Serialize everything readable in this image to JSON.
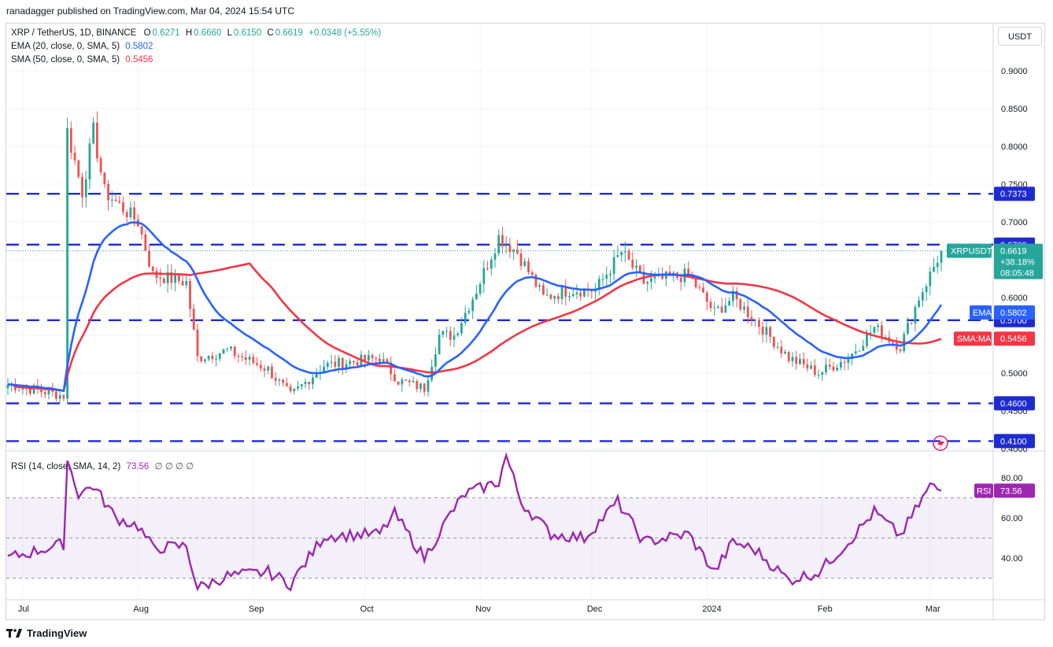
{
  "publisher_line": "ranadagger published on TradingView.com, Mar 04, 2024 15:54 UTC",
  "footer_brand": "TradingView",
  "currency_button": "USDT",
  "legend": {
    "symbol": "XRP / TetherUS, 1D, BINANCE",
    "o_label": "O",
    "o": "0.6271",
    "h_label": "H",
    "h": "0.6660",
    "l_label": "L",
    "l": "0.6150",
    "c_label": "C",
    "c": "0.6619",
    "change": "+0.0348 (+5.55%)",
    "ema_label": "EMA (20, close, 0, SMA, 5)",
    "ema_value": "0.5802",
    "sma_label": "SMA (50, close, 0, SMA, 5)",
    "sma_value": "0.5456",
    "rsi_label": "RSI (14, close, SMA, 14, 2)",
    "rsi_value": "73.56",
    "rsi_extra": "∅ ∅ ∅ ∅"
  },
  "colors": {
    "up": "#26a69a",
    "down": "#ef5350",
    "ema": "#2962ff",
    "sma": "#f23645",
    "rsi": "#9c27b0",
    "level": "#1e2bcf"
  },
  "chart_data": [
    {
      "type": "candlestick",
      "title": "XRP / TetherUS, 1D, BINANCE",
      "ylabel": "USDT",
      "yticks": [
        "0.9000",
        "0.8500",
        "0.8000",
        "0.7500",
        "0.7000",
        "0.6500",
        "0.6000",
        "0.5500",
        "0.5000",
        "0.4500",
        "0.4000"
      ],
      "ylim": [
        0.4,
        0.95
      ],
      "xticks": [
        "Jul",
        "Aug",
        "Sep",
        "Oct",
        "Nov",
        "Dec",
        "2024",
        "Feb",
        "Mar"
      ],
      "horizontal_levels": [
        {
          "value": 0.7373,
          "label": "0.7373"
        },
        {
          "value": 0.67,
          "label": "0.6700"
        },
        {
          "value": 0.57,
          "label": "0.5700"
        },
        {
          "value": 0.46,
          "label": "0.4600"
        },
        {
          "value": 0.41,
          "label": "0.4100"
        }
      ],
      "price_tag": {
        "label": "XRPUSDT",
        "value": "0.6619",
        "change": "+38.18%",
        "countdown": "08:05:48"
      },
      "ema_tag": {
        "label": "EMA",
        "value": "0.5802"
      },
      "sma_tag": {
        "label": "SMA:MA",
        "value": "0.5456"
      },
      "series": [
        {
          "name": "XRPUSDT",
          "type": "candlestick"
        },
        {
          "name": "EMA (20)",
          "type": "line"
        },
        {
          "name": "SMA (50)",
          "type": "line"
        }
      ],
      "anchors": [
        {
          "date": "2023-06-27",
          "close": 0.485
        },
        {
          "date": "2023-07-12",
          "close": 0.47
        },
        {
          "date": "2023-07-13",
          "close": 0.82
        },
        {
          "date": "2023-07-17",
          "close": 0.74
        },
        {
          "date": "2023-07-20",
          "close": 0.82
        },
        {
          "date": "2023-07-23",
          "close": 0.74
        },
        {
          "date": "2023-08-01",
          "close": 0.7
        },
        {
          "date": "2023-08-05",
          "close": 0.63
        },
        {
          "date": "2023-08-14",
          "close": 0.62
        },
        {
          "date": "2023-08-17",
          "close": 0.52
        },
        {
          "date": "2023-08-25",
          "close": 0.53
        },
        {
          "date": "2023-09-05",
          "close": 0.505
        },
        {
          "date": "2023-09-11",
          "close": 0.47
        },
        {
          "date": "2023-09-20",
          "close": 0.51
        },
        {
          "date": "2023-10-05",
          "close": 0.52
        },
        {
          "date": "2023-10-10",
          "close": 0.49
        },
        {
          "date": "2023-10-17",
          "close": 0.48
        },
        {
          "date": "2023-10-21",
          "close": 0.55
        },
        {
          "date": "2023-10-25",
          "close": 0.55
        },
        {
          "date": "2023-10-31",
          "close": 0.61
        },
        {
          "date": "2023-11-06",
          "close": 0.68
        },
        {
          "date": "2023-11-11",
          "close": 0.66
        },
        {
          "date": "2023-11-18",
          "close": 0.6
        },
        {
          "date": "2023-11-25",
          "close": 0.61
        },
        {
          "date": "2023-12-02",
          "close": 0.61
        },
        {
          "date": "2023-12-09",
          "close": 0.66
        },
        {
          "date": "2023-12-15",
          "close": 0.62
        },
        {
          "date": "2023-12-27",
          "close": 0.63
        },
        {
          "date": "2024-01-03",
          "close": 0.58
        },
        {
          "date": "2024-01-08",
          "close": 0.6
        },
        {
          "date": "2024-01-14",
          "close": 0.57
        },
        {
          "date": "2024-01-23",
          "close": 0.52
        },
        {
          "date": "2024-01-31",
          "close": 0.5
        },
        {
          "date": "2024-02-08",
          "close": 0.52
        },
        {
          "date": "2024-02-15",
          "close": 0.56
        },
        {
          "date": "2024-02-22",
          "close": 0.535
        },
        {
          "date": "2024-02-27",
          "close": 0.6
        },
        {
          "date": "2024-03-01",
          "close": 0.63
        },
        {
          "date": "2024-03-04",
          "close": 0.6619
        }
      ]
    },
    {
      "type": "line",
      "title": "RSI (14, close, SMA, 14, 2)",
      "yticks": [
        "80.00",
        "60.00",
        "40.00"
      ],
      "ylim": [
        24,
        94
      ],
      "bands": [
        70,
        50,
        30
      ],
      "last": {
        "label": "RSI",
        "value": "73.56"
      },
      "anchors": [
        {
          "date": "2023-06-27",
          "rsi": 40
        },
        {
          "date": "2023-07-12",
          "rsi": 47
        },
        {
          "date": "2023-07-13",
          "rsi": 89
        },
        {
          "date": "2023-07-16",
          "rsi": 72
        },
        {
          "date": "2023-07-20",
          "rsi": 76
        },
        {
          "date": "2023-07-26",
          "rsi": 60
        },
        {
          "date": "2023-08-01",
          "rsi": 56
        },
        {
          "date": "2023-08-05",
          "rsi": 45
        },
        {
          "date": "2023-08-14",
          "rsi": 46
        },
        {
          "date": "2023-08-17",
          "rsi": 25
        },
        {
          "date": "2023-08-25",
          "rsi": 31
        },
        {
          "date": "2023-09-05",
          "rsi": 33
        },
        {
          "date": "2023-09-11",
          "rsi": 27
        },
        {
          "date": "2023-09-20",
          "rsi": 51
        },
        {
          "date": "2023-10-05",
          "rsi": 52
        },
        {
          "date": "2023-10-09",
          "rsi": 62
        },
        {
          "date": "2023-10-17",
          "rsi": 40
        },
        {
          "date": "2023-10-24",
          "rsi": 62
        },
        {
          "date": "2023-10-28",
          "rsi": 72
        },
        {
          "date": "2023-11-06",
          "rsi": 78
        },
        {
          "date": "2023-11-08",
          "rsi": 91
        },
        {
          "date": "2023-11-12",
          "rsi": 68
        },
        {
          "date": "2023-11-20",
          "rsi": 52
        },
        {
          "date": "2023-11-29",
          "rsi": 50
        },
        {
          "date": "2023-12-08",
          "rsi": 68
        },
        {
          "date": "2023-12-15",
          "rsi": 48
        },
        {
          "date": "2023-12-27",
          "rsi": 52
        },
        {
          "date": "2024-01-03",
          "rsi": 33
        },
        {
          "date": "2024-01-08",
          "rsi": 48
        },
        {
          "date": "2024-01-14",
          "rsi": 44
        },
        {
          "date": "2024-01-23",
          "rsi": 29
        },
        {
          "date": "2024-01-31",
          "rsi": 33
        },
        {
          "date": "2024-02-08",
          "rsi": 48
        },
        {
          "date": "2024-02-15",
          "rsi": 63
        },
        {
          "date": "2024-02-22",
          "rsi": 51
        },
        {
          "date": "2024-03-01",
          "rsi": 76
        },
        {
          "date": "2024-03-04",
          "rsi": 73.56
        }
      ]
    }
  ]
}
